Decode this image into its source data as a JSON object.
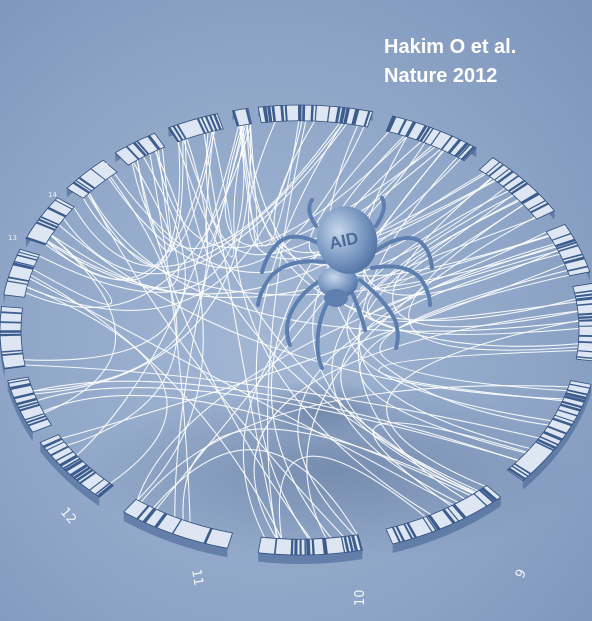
{
  "citation": {
    "line1": "Hakim O et al.",
    "line2": "Nature 2012"
  },
  "chromosome_labels": [
    "12",
    "11",
    "10",
    "9"
  ],
  "tiny_labels": [
    "13",
    "14",
    "15",
    "16"
  ],
  "spider": {
    "label": "AID"
  },
  "colors": {
    "background": "#8fa6c8",
    "ring_dark": "#3c5d8e",
    "ring_light": "#dde6f2",
    "threads": "#ffffff",
    "spider": "#6f8fb9",
    "text": "#ffffff"
  }
}
